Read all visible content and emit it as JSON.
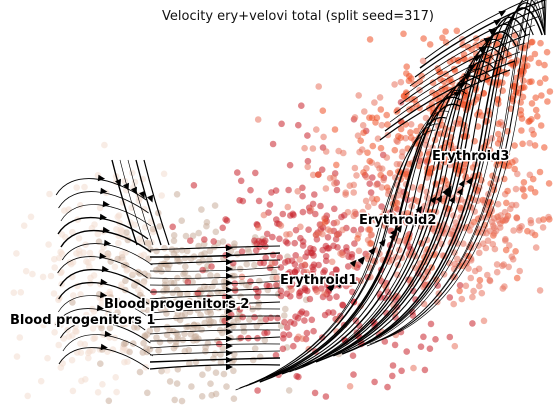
{
  "chart_data": {
    "type": "scatter",
    "title": "Velocity ery+velovi total (split seed=317)",
    "xlabel": "",
    "ylabel": "",
    "axes_visible": false,
    "grid": false,
    "legend": "none",
    "overlay": "velocity streamlines with arrowheads",
    "clusters": [
      {
        "name": "Blood progenitors 1",
        "color": "#f2ddd0"
      },
      {
        "name": "Blood progenitors 2",
        "color": "#c9ad9b"
      },
      {
        "name": "Erythroid1",
        "color": "#c8232c"
      },
      {
        "name": "Erythroid2",
        "color": "#e8735e"
      },
      {
        "name": "Erythroid3",
        "color": "#ee5127"
      }
    ]
  }
}
